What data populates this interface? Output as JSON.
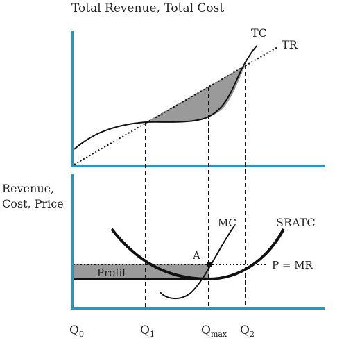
{
  "top_panel": {
    "title": "Total Revenue, Total Cost",
    "curve_tc": "TC",
    "curve_tr": "TR"
  },
  "bottom_panel": {
    "ylabel_line1": "Revenue,",
    "ylabel_line2": "Cost, Price",
    "curve_mc": "MC",
    "curve_sratc": "SRATC",
    "line_price": "P = MR",
    "point_a": "A",
    "region_profit": "Profit"
  },
  "x_axis": {
    "q0": {
      "base": "Q",
      "sub": "0"
    },
    "q1": {
      "base": "Q",
      "sub": "1"
    },
    "qmax": {
      "base": "Q",
      "sub": "max"
    },
    "q2": {
      "base": "Q",
      "sub": "2"
    }
  },
  "colors": {
    "axis": "#2b95c0",
    "curve": "#111111",
    "shade": "#9a9a9a"
  }
}
